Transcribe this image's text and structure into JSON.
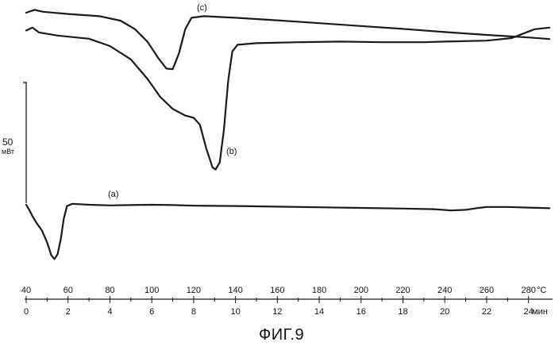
{
  "chart_data": {
    "type": "line",
    "title": "",
    "caption": "ФИГ.9",
    "x_temp": {
      "unit": "°С",
      "range": [
        40,
        290
      ],
      "ticks": [
        40,
        60,
        80,
        100,
        120,
        140,
        160,
        180,
        200,
        220,
        240,
        260,
        280
      ]
    },
    "x_time": {
      "unit": "мин",
      "range": [
        0,
        25
      ],
      "ticks": [
        0,
        2,
        4,
        6,
        8,
        10,
        12,
        14,
        16,
        18,
        20,
        22,
        24
      ]
    },
    "y_scale": {
      "value": "50",
      "unit": "мВт"
    },
    "series": [
      {
        "name": "(c)",
        "points": [
          [
            0,
            1
          ],
          [
            0.4,
            0.1
          ],
          [
            0.8,
            0.7
          ],
          [
            2,
            1.4
          ],
          [
            3.5,
            2.1
          ],
          [
            4.5,
            3.5
          ],
          [
            5.2,
            6.2
          ],
          [
            5.8,
            10.2
          ],
          [
            6.3,
            15.2
          ],
          [
            6.7,
            18.6
          ],
          [
            7.0,
            18.8
          ],
          [
            7.3,
            13.8
          ],
          [
            7.6,
            6.2
          ],
          [
            7.9,
            2.6
          ],
          [
            8.5,
            2.1
          ],
          [
            10,
            2.6
          ],
          [
            12,
            3.4
          ],
          [
            14,
            4.3
          ],
          [
            16,
            5.2
          ],
          [
            18,
            6.1
          ],
          [
            20,
            7.1
          ],
          [
            22,
            8.0
          ],
          [
            24,
            8.8
          ],
          [
            25,
            9.3
          ]
        ]
      },
      {
        "name": "(b)",
        "points": [
          [
            0,
            6.6
          ],
          [
            0.3,
            5.7
          ],
          [
            0.6,
            7.2
          ],
          [
            1.5,
            8.2
          ],
          [
            3,
            9.2
          ],
          [
            4,
            11.5
          ],
          [
            5,
            15.7
          ],
          [
            5.8,
            21.9
          ],
          [
            6.4,
            27.5
          ],
          [
            7,
            31.3
          ],
          [
            7.6,
            33.4
          ],
          [
            8,
            34.1
          ],
          [
            8.3,
            36.3
          ],
          [
            8.6,
            43.7
          ],
          [
            8.9,
            49.7
          ],
          [
            9.05,
            50.4
          ],
          [
            9.25,
            48.1
          ],
          [
            9.45,
            37.7
          ],
          [
            9.65,
            22.4
          ],
          [
            9.85,
            13.2
          ],
          [
            10.1,
            11.1
          ],
          [
            11,
            10.6
          ],
          [
            13,
            10.3
          ],
          [
            15,
            10.1
          ],
          [
            17,
            10.3
          ],
          [
            19,
            10.3
          ],
          [
            20,
            10.1
          ],
          [
            22,
            9.8
          ],
          [
            23.2,
            9.0
          ],
          [
            23.7,
            7.7
          ],
          [
            24.3,
            6.2
          ],
          [
            25,
            5.7
          ]
        ]
      },
      {
        "name": "(a)",
        "points": [
          [
            0,
            61.5
          ],
          [
            0.15,
            63.2
          ],
          [
            0.3,
            65.1
          ],
          [
            0.5,
            67.3
          ],
          [
            0.75,
            69.6
          ],
          [
            1.0,
            73.4
          ],
          [
            1.2,
            77.4
          ],
          [
            1.35,
            78.6
          ],
          [
            1.5,
            77.1
          ],
          [
            1.65,
            72.4
          ],
          [
            1.8,
            65.8
          ],
          [
            1.95,
            61.9
          ],
          [
            2.2,
            61.2
          ],
          [
            3,
            61.5
          ],
          [
            4,
            61.7
          ],
          [
            5,
            61.6
          ],
          [
            6,
            61.5
          ],
          [
            7,
            61.6
          ],
          [
            8,
            61.8
          ],
          [
            10,
            61.9
          ],
          [
            12,
            62.1
          ],
          [
            14,
            62.3
          ],
          [
            16,
            62.5
          ],
          [
            18,
            62.7
          ],
          [
            19.5,
            62.9
          ],
          [
            20.3,
            63.3
          ],
          [
            21,
            63.1
          ],
          [
            21.5,
            62.6
          ],
          [
            22,
            62.2
          ],
          [
            23,
            62.2
          ],
          [
            24,
            62.4
          ],
          [
            25,
            62.6
          ]
        ]
      }
    ]
  }
}
